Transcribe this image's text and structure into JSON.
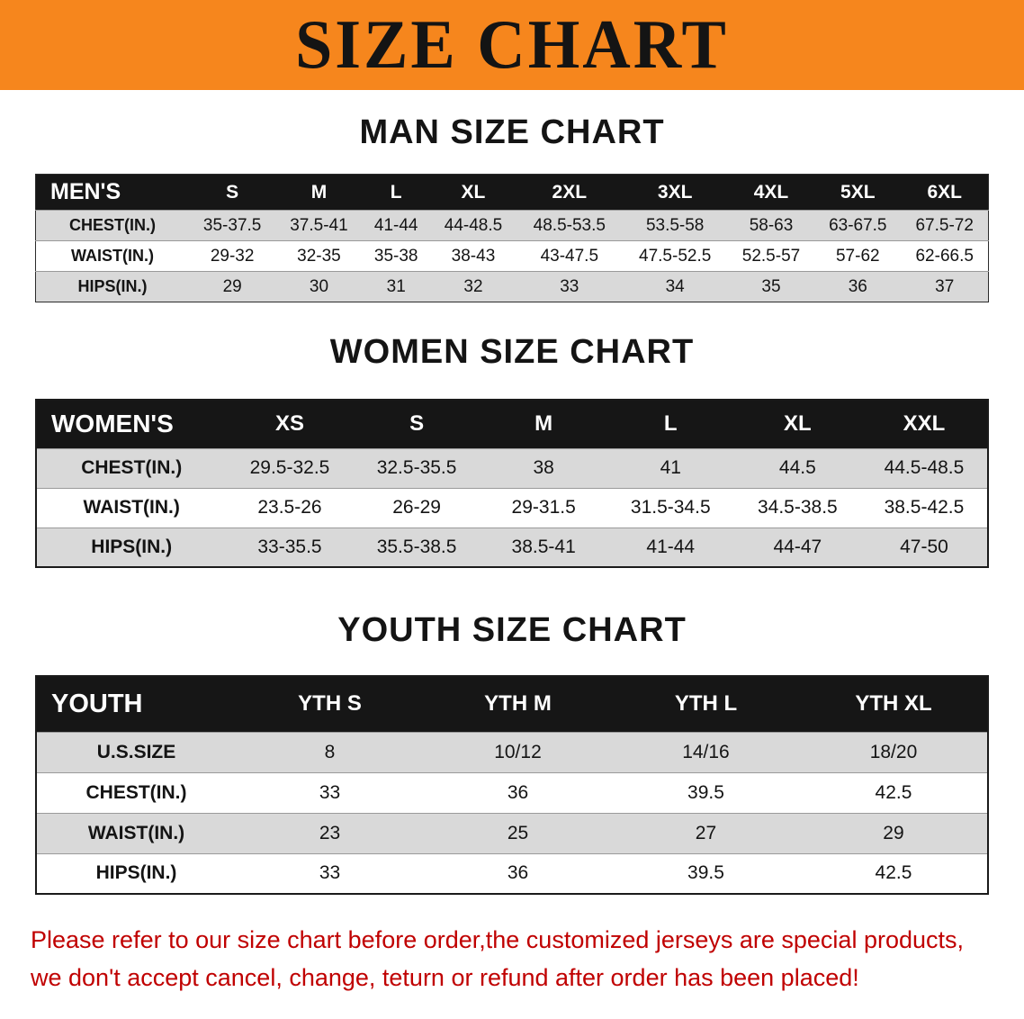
{
  "banner": {
    "title": "SIZE CHART",
    "bg_color": "#f6861d",
    "text_color": "#141414"
  },
  "sections": [
    {
      "heading": "MAN SIZE CHART",
      "corner": "MEN'S",
      "columns": [
        "S",
        "M",
        "L",
        "XL",
        "2XL",
        "3XL",
        "4XL",
        "5XL",
        "6XL"
      ],
      "rows": [
        {
          "label": "CHEST(IN.)",
          "values": [
            "35-37.5",
            "37.5-41",
            "41-44",
            "44-48.5",
            "48.5-53.5",
            "53.5-58",
            "58-63",
            "63-67.5",
            "67.5-72"
          ]
        },
        {
          "label": "WAIST(IN.)",
          "values": [
            "29-32",
            "32-35",
            "35-38",
            "38-43",
            "43-47.5",
            "47.5-52.5",
            "52.5-57",
            "57-62",
            "62-66.5"
          ]
        },
        {
          "label": "HIPS(IN.)",
          "values": [
            "29",
            "30",
            "31",
            "32",
            "33",
            "34",
            "35",
            "36",
            "37"
          ]
        }
      ]
    },
    {
      "heading": "WOMEN SIZE CHART",
      "corner": "WOMEN'S",
      "columns": [
        "XS",
        "S",
        "M",
        "L",
        "XL",
        "XXL"
      ],
      "rows": [
        {
          "label": "CHEST(IN.)",
          "values": [
            "29.5-32.5",
            "32.5-35.5",
            "38",
            "41",
            "44.5",
            "44.5-48.5"
          ]
        },
        {
          "label": "WAIST(IN.)",
          "values": [
            "23.5-26",
            "26-29",
            "29-31.5",
            "31.5-34.5",
            "34.5-38.5",
            "38.5-42.5"
          ]
        },
        {
          "label": "HIPS(IN.)",
          "values": [
            "33-35.5",
            "35.5-38.5",
            "38.5-41",
            "41-44",
            "44-47",
            "47-50"
          ]
        }
      ]
    },
    {
      "heading": "YOUTH SIZE CHART",
      "corner": "YOUTH",
      "columns": [
        "YTH S",
        "YTH M",
        "YTH L",
        "YTH XL"
      ],
      "rows": [
        {
          "label": "U.S.SIZE",
          "values": [
            "8",
            "10/12",
            "14/16",
            "18/20"
          ]
        },
        {
          "label": "CHEST(IN.)",
          "values": [
            "33",
            "36",
            "39.5",
            "42.5"
          ]
        },
        {
          "label": "WAIST(IN.)",
          "values": [
            "23",
            "25",
            "27",
            "29"
          ]
        },
        {
          "label": "HIPS(IN.)",
          "values": [
            "33",
            "36",
            "39.5",
            "42.5"
          ]
        }
      ]
    }
  ],
  "footer": {
    "line1": "Please refer to our size chart before order,the customized jerseys are special products,",
    "line2": "we don't accept cancel, change, teturn or refund after order has been placed!",
    "text_color": "#c00000"
  },
  "colors": {
    "banner_orange": "#f6861d",
    "table_header_black": "#161616",
    "row_alt_gray": "#d9d9d9",
    "notice_red": "#c00000"
  }
}
